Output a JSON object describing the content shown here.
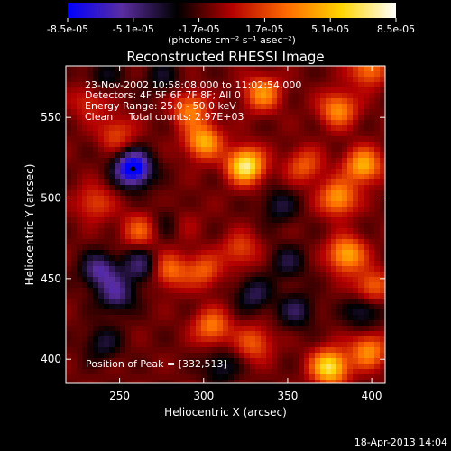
{
  "chart_data": {
    "type": "heatmap",
    "title": "Reconstructed RHESSI Image",
    "xlabel": "Heliocentric X (arcsec)",
    "ylabel": "Heliocentric Y (arcsec)",
    "xlim": [
      218,
      408
    ],
    "ylim": [
      385,
      582
    ],
    "x_ticks": [
      250,
      300,
      350,
      400
    ],
    "y_ticks": [
      400,
      450,
      500,
      550
    ],
    "colorbar": {
      "min": -8.5e-05,
      "max": 8.5e-05,
      "tick_labels": [
        "-8.5e-05",
        "-5.1e-05",
        "-1.7e-05",
        "1.7e-05",
        "5.1e-05",
        "8.5e-05"
      ],
      "unit_label": "(photons cm⁻² s⁻¹ asec⁻²)",
      "colors": [
        "#0000ff",
        "#5a2da0",
        "#000000",
        "#b40000",
        "#ff6a00",
        "#ffd400",
        "#ffffff"
      ]
    },
    "annotations": {
      "time_range": "23-Nov-2002 10:58:08.000 to 11:02:54.000",
      "detectors": "Detectors: 4F 5F 6F 7F 8F; All 0",
      "energy": "Energy Range: 25.0 - 50.0 keV",
      "method": "Clean     Total counts: 2.97E+03",
      "peak": "Position of Peak = [332,513]"
    },
    "peak": {
      "x": 332,
      "y": 513
    },
    "min_marker": {
      "x": 258,
      "y": 518
    },
    "sources": [
      {
        "x": 325,
        "y": 520,
        "value": 8.5e-05
      },
      {
        "x": 300,
        "y": 535,
        "value": 6e-05
      },
      {
        "x": 292,
        "y": 555,
        "value": 4.5e-05
      },
      {
        "x": 335,
        "y": 565,
        "value": 5e-05
      },
      {
        "x": 380,
        "y": 555,
        "value": 5e-05
      },
      {
        "x": 395,
        "y": 520,
        "value": 6e-05
      },
      {
        "x": 380,
        "y": 500,
        "value": 5.5e-05
      },
      {
        "x": 360,
        "y": 520,
        "value": 3.5e-05
      },
      {
        "x": 385,
        "y": 465,
        "value": 6e-05
      },
      {
        "x": 400,
        "y": 445,
        "value": 4e-05
      },
      {
        "x": 398,
        "y": 580,
        "value": 4.5e-05
      },
      {
        "x": 375,
        "y": 395,
        "value": 8e-05
      },
      {
        "x": 398,
        "y": 405,
        "value": 5e-05
      },
      {
        "x": 330,
        "y": 410,
        "value": 3.5e-05
      },
      {
        "x": 305,
        "y": 420,
        "value": 4.5e-05
      },
      {
        "x": 280,
        "y": 455,
        "value": 4e-05
      },
      {
        "x": 300,
        "y": 455,
        "value": 3.5e-05
      },
      {
        "x": 322,
        "y": 468,
        "value": 3e-05
      },
      {
        "x": 262,
        "y": 480,
        "value": 3.5e-05
      },
      {
        "x": 235,
        "y": 497,
        "value": 3e-05
      },
      {
        "x": 248,
        "y": 540,
        "value": 3e-05
      },
      {
        "x": 232,
        "y": 560,
        "value": 2.5e-05
      },
      {
        "x": 285,
        "y": 485,
        "value": 2.5e-05
      },
      {
        "x": 258,
        "y": 518,
        "value": -8.5e-05
      },
      {
        "x": 238,
        "y": 455,
        "value": -4.5e-05
      },
      {
        "x": 248,
        "y": 440,
        "value": -4e-05
      },
      {
        "x": 262,
        "y": 458,
        "value": -3.5e-05
      },
      {
        "x": 280,
        "y": 485,
        "value": -3e-05
      },
      {
        "x": 330,
        "y": 440,
        "value": -3e-05
      },
      {
        "x": 355,
        "y": 430,
        "value": -3e-05
      },
      {
        "x": 350,
        "y": 460,
        "value": -2.5e-05
      },
      {
        "x": 395,
        "y": 430,
        "value": -3e-05
      },
      {
        "x": 240,
        "y": 410,
        "value": -2.5e-05
      },
      {
        "x": 310,
        "y": 395,
        "value": -2.5e-05
      },
      {
        "x": 345,
        "y": 495,
        "value": -2.5e-05
      },
      {
        "x": 240,
        "y": 575,
        "value": -2e-05
      },
      {
        "x": 275,
        "y": 575,
        "value": -2e-05
      }
    ],
    "grid": false
  },
  "footer": {
    "timestamp": "18-Apr-2013 14:04"
  }
}
